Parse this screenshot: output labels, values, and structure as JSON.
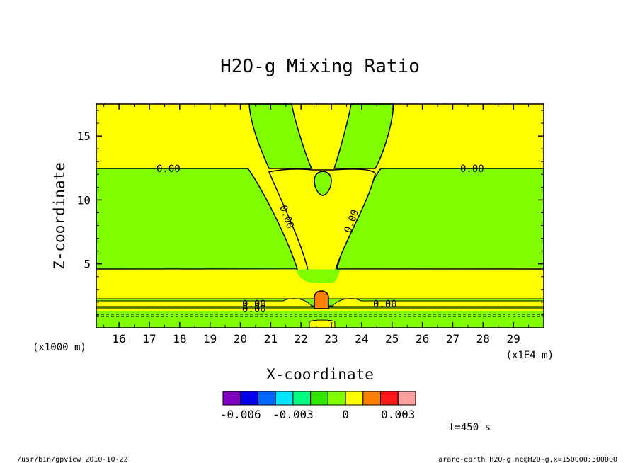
{
  "chart_data": {
    "type": "contour",
    "title": "H2O-g Mixing Ratio",
    "xlabel": "X-coordinate",
    "ylabel": "Z-coordinate",
    "x_unit": "(x1E4 m)",
    "y_unit": "(x1000 m)",
    "xlim": [
      15.25,
      30.0
    ],
    "ylim": [
      0.0,
      17.5
    ],
    "x_ticks": [
      "16",
      "17",
      "18",
      "19",
      "20",
      "21",
      "22",
      "23",
      "24",
      "25",
      "26",
      "27",
      "28",
      "29"
    ],
    "y_ticks": [
      "5",
      "10",
      "15"
    ],
    "contour_labels": [
      "0.00",
      "0.00",
      "0.00",
      "0.00",
      "0.00",
      "0.00",
      "0.00"
    ],
    "colorbar": {
      "colors": [
        "#7f00bf",
        "#0000e6",
        "#0066ff",
        "#00e6ff",
        "#00ff80",
        "#33e600",
        "#80ff00",
        "#ffff00",
        "#ff8000",
        "#ff1a1a",
        "#ffa0a0"
      ],
      "tick_labels": [
        "-0.006",
        "-0.003",
        "0",
        "0.003"
      ],
      "tick_values": [
        -0.006,
        -0.003,
        0,
        0.003
      ]
    },
    "colors": {
      "negative_fill": "#80ff00",
      "near_zero_fill": "#ffff00",
      "positive_fill": "#ff8000"
    }
  },
  "annotations": {
    "time": "t=450 s",
    "footer_left": "/usr/bin/gpview  2010-10-22",
    "footer_right": "arare-earth_H2O-g.nc@H2O-g,x=150000:300000"
  }
}
